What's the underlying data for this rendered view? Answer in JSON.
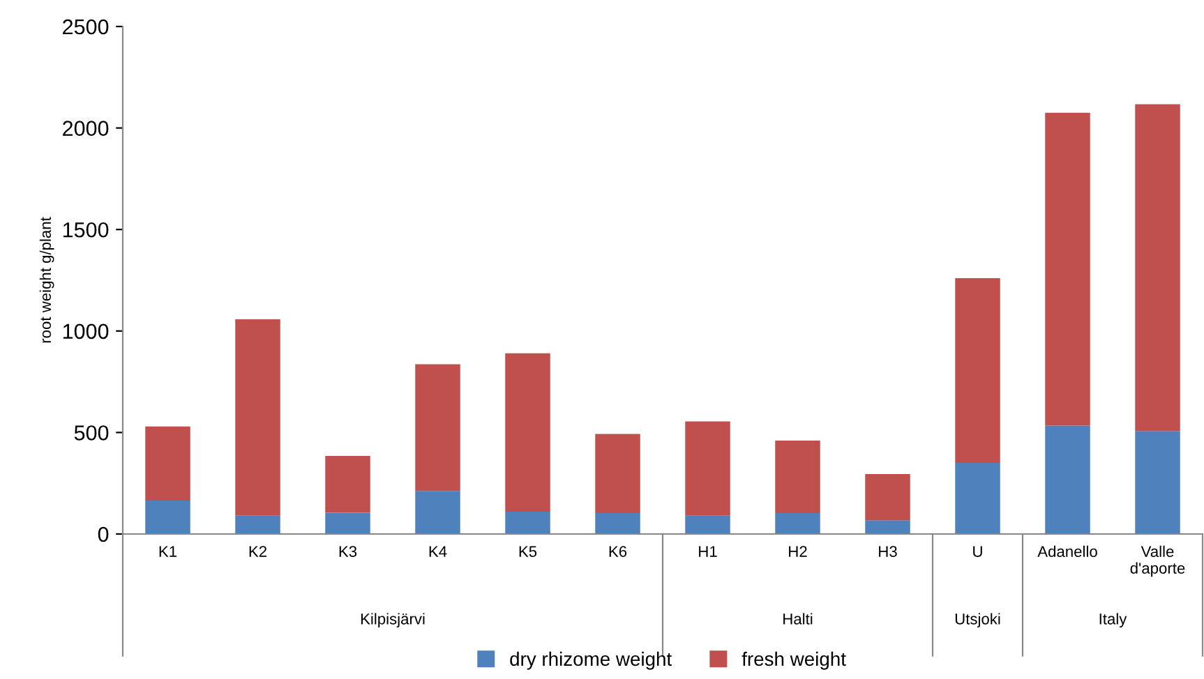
{
  "chart_data": {
    "type": "bar",
    "stacked": true,
    "ylabel": "root weight g/plant",
    "categories": [
      "K1",
      "K2",
      "K3",
      "K4",
      "K5",
      "K6",
      "H1",
      "H2",
      "H3",
      "U",
      "Adanello",
      "Valle\nd'aporte"
    ],
    "series": [
      {
        "name": "dry rhizome weight",
        "color": "#4f81bd",
        "values": [
          165,
          90,
          105,
          212,
          110,
          103,
          90,
          103,
          68,
          350,
          534,
          507
        ]
      },
      {
        "name": "fresh weight",
        "color": "#c0504d",
        "values": [
          365,
          968,
          280,
          624,
          780,
          390,
          465,
          357,
          227,
          910,
          1541,
          1610
        ]
      }
    ],
    "annotations": [
      "Kilpisjärvi",
      "Halti",
      "Utsjoki",
      "Italy"
    ],
    "ylim": [
      0,
      2500
    ],
    "yticks": [
      0,
      500,
      1000,
      1500,
      2000,
      2500
    ],
    "grid": false,
    "legend": "bottom"
  }
}
